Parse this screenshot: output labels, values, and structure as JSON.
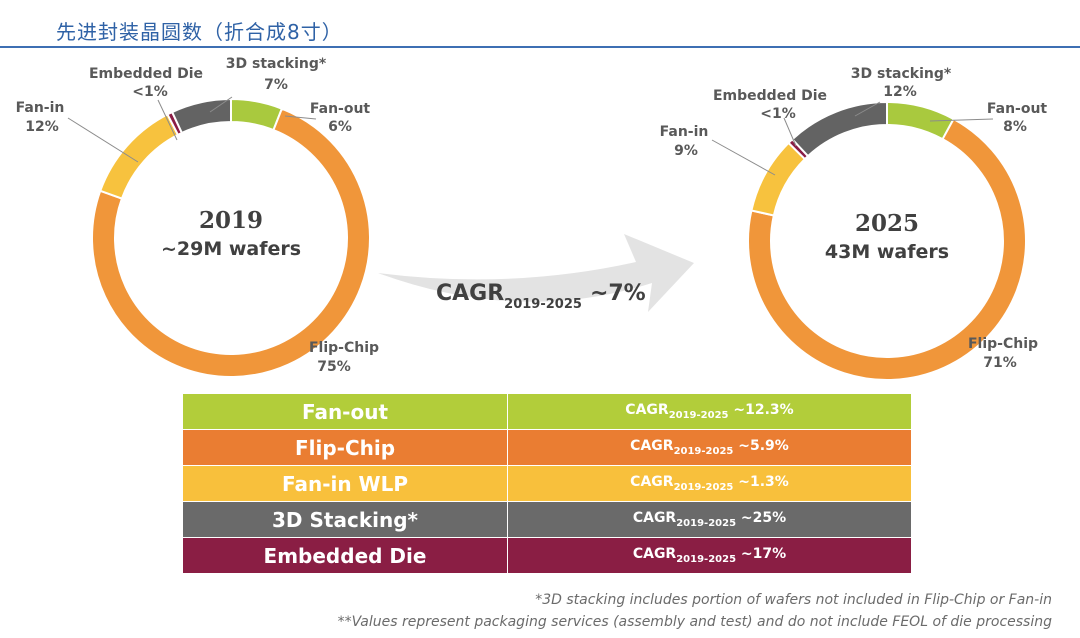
{
  "header": {
    "title": "先进封装晶圆数（折合成8寸）"
  },
  "chart_data": [
    {
      "type": "pie",
      "title": "2019",
      "subtitle": "~29M wafers",
      "slices": [
        {
          "name": "Fan-out",
          "value": 6,
          "label": "6%",
          "color": "#a9c93e"
        },
        {
          "name": "Flip-Chip",
          "value": 75,
          "label": "75%",
          "color": "#f0963a"
        },
        {
          "name": "Fan-in",
          "value": 12,
          "label": "12%",
          "color": "#f7c23e"
        },
        {
          "name": "Embedded Die",
          "value": 0.6,
          "label": "<1%",
          "color": "#8b1d45"
        },
        {
          "name": "3D stacking*",
          "value": 7,
          "label": "7%",
          "color": "#636363"
        }
      ]
    },
    {
      "type": "pie",
      "title": "2025",
      "subtitle": "43M wafers",
      "slices": [
        {
          "name": "Fan-out",
          "value": 8,
          "label": "8%",
          "color": "#a9c93e"
        },
        {
          "name": "Flip-Chip",
          "value": 71,
          "label": "71%",
          "color": "#f0963a"
        },
        {
          "name": "Fan-in",
          "value": 9,
          "label": "9%",
          "color": "#f7c23e"
        },
        {
          "name": "Embedded Die",
          "value": 0.6,
          "label": "<1%",
          "color": "#8b1d45"
        },
        {
          "name": "3D stacking*",
          "value": 12,
          "label": "12%",
          "color": "#636363"
        }
      ]
    },
    {
      "type": "table",
      "rows": [
        {
          "name": "Fan-out",
          "cagr_prefix": "CAGR",
          "cagr_sub": "2019-2025",
          "cagr_value": "~12.3%",
          "color": "#b2cd3a"
        },
        {
          "name": "Flip-Chip",
          "cagr_prefix": "CAGR",
          "cagr_sub": "2019-2025",
          "cagr_value": "~5.9%",
          "color": "#ea7d32"
        },
        {
          "name": "Fan-in WLP",
          "cagr_prefix": "CAGR",
          "cagr_sub": "2019-2025",
          "cagr_value": "~1.3%",
          "color": "#f8c03c"
        },
        {
          "name": "3D Stacking*",
          "cagr_prefix": "CAGR",
          "cagr_sub": "2019-2025",
          "cagr_value": "~25%",
          "color": "#6a6a6a"
        },
        {
          "name": "Embedded Die",
          "cagr_prefix": "CAGR",
          "cagr_sub": "2019-2025",
          "cagr_value": "~17%",
          "color": "#8a1e44"
        }
      ]
    }
  ],
  "arrow": {
    "prefix": "CAGR",
    "sub": "2019-2025",
    "value": "~7%"
  },
  "notes": {
    "line1": "*3D stacking includes portion of wafers not included in Flip-Chip or Fan-in",
    "line2": "**Values represent packaging services (assembly and test) and do not include FEOL of die processing"
  }
}
